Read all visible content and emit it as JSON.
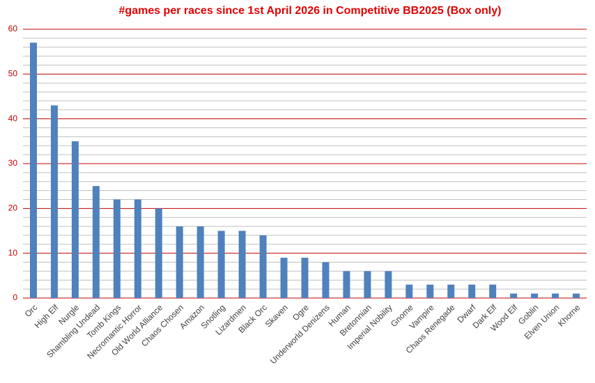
{
  "chart_data": {
    "type": "bar",
    "title": "#games per races since 1st April 2026 in Competitive BB2025 (Box only)",
    "title_color": "#e00000",
    "categories": [
      "Orc",
      "High Elf",
      "Nurgle",
      "Shambling Undead",
      "Tomb Kings",
      "Necromantic Horror",
      "Old World Alliance",
      "Chaos Chosen",
      "Amazon",
      "Snotling",
      "Lizardmen",
      "Black Orc",
      "Skaven",
      "Ogre",
      "Underworld Denizens",
      "Human",
      "Bretonnian",
      "Imperial Nobility",
      "Gnome",
      "Vampire",
      "Chaos Renegade",
      "Dwarf",
      "Dark Elf",
      "Wood Elf",
      "Goblin",
      "Elven Union",
      "Khorne"
    ],
    "values": [
      57,
      43,
      35,
      25,
      22,
      22,
      20,
      16,
      16,
      15,
      15,
      14,
      9,
      9,
      8,
      6,
      6,
      6,
      3,
      3,
      3,
      3,
      3,
      1,
      1,
      1,
      1
    ],
    "color": "#4f81bd",
    "ylim": [
      0,
      60
    ],
    "yticks": [
      0,
      10,
      20,
      30,
      40,
      50,
      60
    ],
    "yminorticks": [
      2,
      4,
      6,
      8,
      12,
      14,
      16,
      18,
      22,
      24,
      26,
      28,
      32,
      34,
      36,
      38,
      42,
      44,
      46,
      48,
      52,
      54,
      56,
      58
    ],
    "grid": true,
    "grid_color": "#c00000",
    "minor_grid_color": "#bfbfbf"
  }
}
